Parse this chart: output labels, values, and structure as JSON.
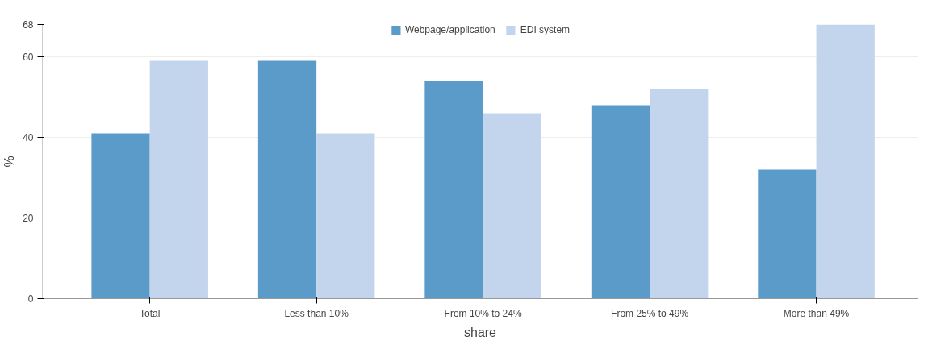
{
  "chart_data": {
    "type": "bar",
    "xlabel": "share",
    "ylabel": "%",
    "categories": [
      "Total",
      "Less than 10%",
      "From 10% to 24%",
      "From 25% to 49%",
      "More than 49%"
    ],
    "series": [
      {
        "name": "Webpage/application",
        "color": "#5a9bc9",
        "values": [
          41,
          59,
          54,
          48,
          32
        ]
      },
      {
        "name": "EDI system",
        "color": "#c3d5ec",
        "values": [
          59,
          41,
          46,
          52,
          68
        ]
      }
    ],
    "ylim": [
      0,
      68
    ],
    "yticks": [
      0,
      20,
      40,
      60,
      68
    ],
    "grid": "y",
    "legend": "top"
  }
}
